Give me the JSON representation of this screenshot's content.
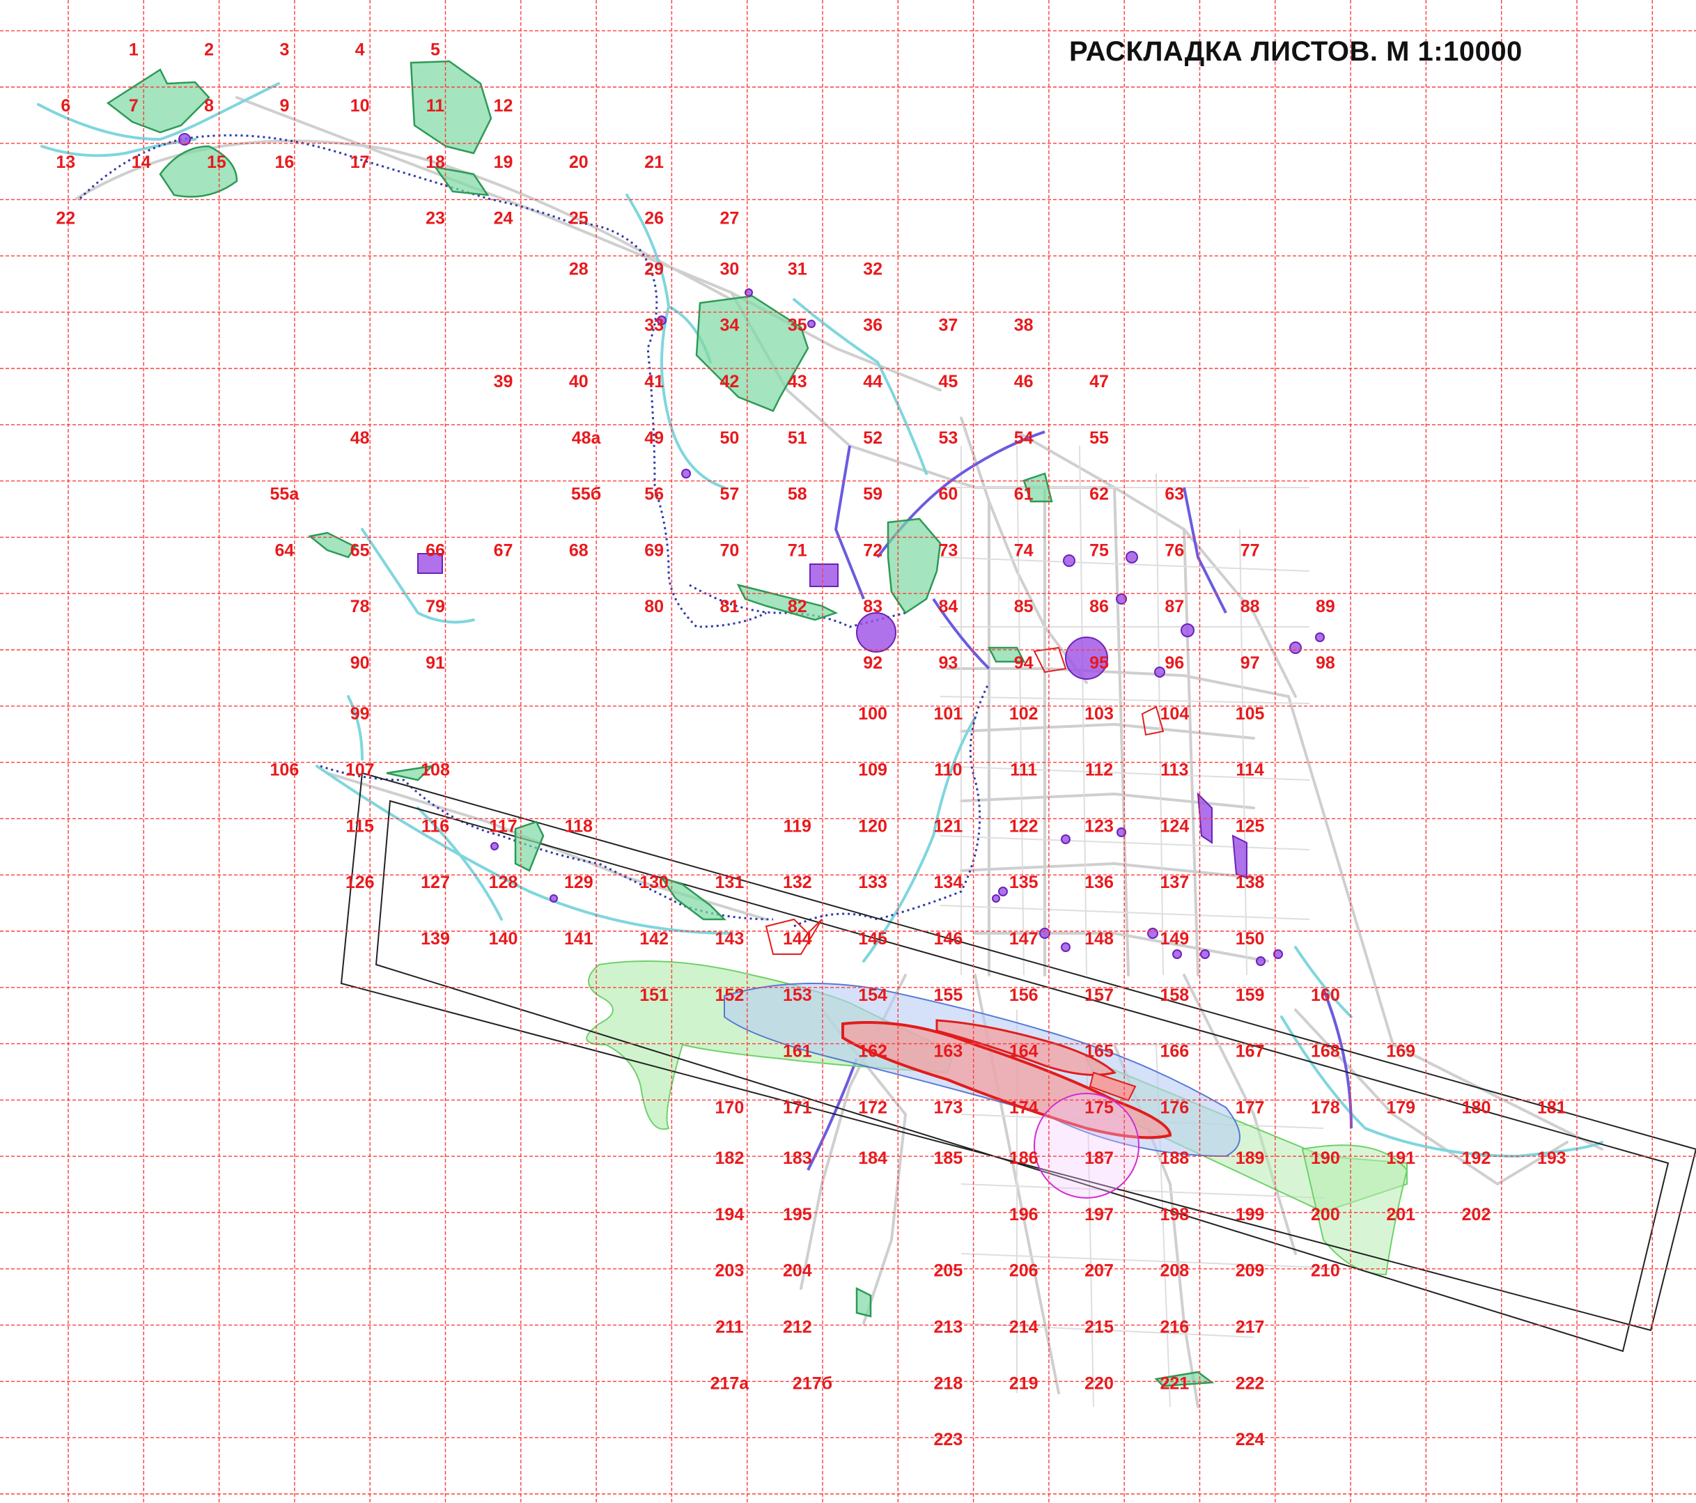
{
  "title": "РАСКЛАДКА ЛИСТОВ. М 1:10000",
  "colors": {
    "grid": "#ff3b3b",
    "labels": "#e8191c",
    "green_zones": "#36b36a",
    "water": "#7fd6de",
    "roads": "#c9c9c9",
    "blue_routes": "#6a5be0",
    "red_zones": "#e11c1c",
    "purple": "#9b4fe6",
    "corridor": "#222222"
  },
  "sheets": [
    {
      "id": "1",
      "c": 1.8,
      "r": 0.9
    },
    {
      "id": "2",
      "c": 2.8,
      "r": 0.9
    },
    {
      "id": "3",
      "c": 3.8,
      "r": 0.9
    },
    {
      "id": "4",
      "c": 4.8,
      "r": 0.9
    },
    {
      "id": "5",
      "c": 5.8,
      "r": 0.9
    },
    {
      "id": "6",
      "c": 0.9,
      "r": 1.9
    },
    {
      "id": "7",
      "c": 1.8,
      "r": 1.9
    },
    {
      "id": "8",
      "c": 2.8,
      "r": 1.9
    },
    {
      "id": "9",
      "c": 3.8,
      "r": 1.9
    },
    {
      "id": "10",
      "c": 4.8,
      "r": 1.9
    },
    {
      "id": "11",
      "c": 5.8,
      "r": 1.9
    },
    {
      "id": "12",
      "c": 6.7,
      "r": 1.9
    },
    {
      "id": "13",
      "c": 0.9,
      "r": 2.9
    },
    {
      "id": "14",
      "c": 1.9,
      "r": 2.9
    },
    {
      "id": "15",
      "c": 2.9,
      "r": 2.9
    },
    {
      "id": "16",
      "c": 3.8,
      "r": 2.9
    },
    {
      "id": "17",
      "c": 4.8,
      "r": 2.9
    },
    {
      "id": "18",
      "c": 5.8,
      "r": 2.9
    },
    {
      "id": "19",
      "c": 6.7,
      "r": 2.9
    },
    {
      "id": "20",
      "c": 7.7,
      "r": 2.9
    },
    {
      "id": "21",
      "c": 8.7,
      "r": 2.9
    },
    {
      "id": "22",
      "c": 0.9,
      "r": 3.9
    },
    {
      "id": "23",
      "c": 5.8,
      "r": 3.9
    },
    {
      "id": "24",
      "c": 6.7,
      "r": 3.9
    },
    {
      "id": "25",
      "c": 7.7,
      "r": 3.9
    },
    {
      "id": "26",
      "c": 8.7,
      "r": 3.9
    },
    {
      "id": "27",
      "c": 9.7,
      "r": 3.9
    },
    {
      "id": "28",
      "c": 7.7,
      "r": 4.8
    },
    {
      "id": "29",
      "c": 8.7,
      "r": 4.8
    },
    {
      "id": "30",
      "c": 9.7,
      "r": 4.8
    },
    {
      "id": "31",
      "c": 10.6,
      "r": 4.8
    },
    {
      "id": "32",
      "c": 11.6,
      "r": 4.8
    },
    {
      "id": "33",
      "c": 8.7,
      "r": 5.8
    },
    {
      "id": "34",
      "c": 9.7,
      "r": 5.8
    },
    {
      "id": "35",
      "c": 10.6,
      "r": 5.8
    },
    {
      "id": "36",
      "c": 11.6,
      "r": 5.8
    },
    {
      "id": "37",
      "c": 12.6,
      "r": 5.8
    },
    {
      "id": "38",
      "c": 13.6,
      "r": 5.8
    },
    {
      "id": "39",
      "c": 6.7,
      "r": 6.8
    },
    {
      "id": "40",
      "c": 7.7,
      "r": 6.8
    },
    {
      "id": "41",
      "c": 8.7,
      "r": 6.8
    },
    {
      "id": "42",
      "c": 9.7,
      "r": 6.8
    },
    {
      "id": "43",
      "c": 10.6,
      "r": 6.8
    },
    {
      "id": "44",
      "c": 11.6,
      "r": 6.8
    },
    {
      "id": "45",
      "c": 12.6,
      "r": 6.8
    },
    {
      "id": "46",
      "c": 13.6,
      "r": 6.8
    },
    {
      "id": "47",
      "c": 14.6,
      "r": 6.8
    },
    {
      "id": "48",
      "c": 4.8,
      "r": 7.8
    },
    {
      "id": "48а",
      "c": 7.8,
      "r": 7.8
    },
    {
      "id": "49",
      "c": 8.7,
      "r": 7.8
    },
    {
      "id": "50",
      "c": 9.7,
      "r": 7.8
    },
    {
      "id": "51",
      "c": 10.6,
      "r": 7.8
    },
    {
      "id": "52",
      "c": 11.6,
      "r": 7.8
    },
    {
      "id": "53",
      "c": 12.6,
      "r": 7.8
    },
    {
      "id": "54",
      "c": 13.6,
      "r": 7.8
    },
    {
      "id": "55",
      "c": 14.6,
      "r": 7.8
    },
    {
      "id": "55а",
      "c": 3.8,
      "r": 8.8
    },
    {
      "id": "55б",
      "c": 7.8,
      "r": 8.8
    },
    {
      "id": "56",
      "c": 8.7,
      "r": 8.8
    },
    {
      "id": "57",
      "c": 9.7,
      "r": 8.8
    },
    {
      "id": "58",
      "c": 10.6,
      "r": 8.8
    },
    {
      "id": "59",
      "c": 11.6,
      "r": 8.8
    },
    {
      "id": "60",
      "c": 12.6,
      "r": 8.8
    },
    {
      "id": "61",
      "c": 13.6,
      "r": 8.8
    },
    {
      "id": "62",
      "c": 14.6,
      "r": 8.8
    },
    {
      "id": "63",
      "c": 15.6,
      "r": 8.8
    },
    {
      "id": "64",
      "c": 3.8,
      "r": 9.8
    },
    {
      "id": "65",
      "c": 4.8,
      "r": 9.8
    },
    {
      "id": "66",
      "c": 5.8,
      "r": 9.8
    },
    {
      "id": "67",
      "c": 6.7,
      "r": 9.8
    },
    {
      "id": "68",
      "c": 7.7,
      "r": 9.8
    },
    {
      "id": "69",
      "c": 8.7,
      "r": 9.8
    },
    {
      "id": "70",
      "c": 9.7,
      "r": 9.8
    },
    {
      "id": "71",
      "c": 10.6,
      "r": 9.8
    },
    {
      "id": "72",
      "c": 11.6,
      "r": 9.8
    },
    {
      "id": "73",
      "c": 12.6,
      "r": 9.8
    },
    {
      "id": "74",
      "c": 13.6,
      "r": 9.8
    },
    {
      "id": "75",
      "c": 14.6,
      "r": 9.8
    },
    {
      "id": "76",
      "c": 15.6,
      "r": 9.8
    },
    {
      "id": "77",
      "c": 16.6,
      "r": 9.8
    },
    {
      "id": "78",
      "c": 4.8,
      "r": 10.8
    },
    {
      "id": "79",
      "c": 5.8,
      "r": 10.8
    },
    {
      "id": "80",
      "c": 8.7,
      "r": 10.8
    },
    {
      "id": "81",
      "c": 9.7,
      "r": 10.8
    },
    {
      "id": "82",
      "c": 10.6,
      "r": 10.8
    },
    {
      "id": "83",
      "c": 11.6,
      "r": 10.8
    },
    {
      "id": "84",
      "c": 12.6,
      "r": 10.8
    },
    {
      "id": "85",
      "c": 13.6,
      "r": 10.8
    },
    {
      "id": "86",
      "c": 14.6,
      "r": 10.8
    },
    {
      "id": "87",
      "c": 15.6,
      "r": 10.8
    },
    {
      "id": "88",
      "c": 16.6,
      "r": 10.8
    },
    {
      "id": "89",
      "c": 17.6,
      "r": 10.8
    },
    {
      "id": "90",
      "c": 4.8,
      "r": 11.8
    },
    {
      "id": "91",
      "c": 5.8,
      "r": 11.8
    },
    {
      "id": "92",
      "c": 11.6,
      "r": 11.8
    },
    {
      "id": "93",
      "c": 12.6,
      "r": 11.8
    },
    {
      "id": "94",
      "c": 13.6,
      "r": 11.8
    },
    {
      "id": "95",
      "c": 14.6,
      "r": 11.8
    },
    {
      "id": "96",
      "c": 15.6,
      "r": 11.8
    },
    {
      "id": "97",
      "c": 16.6,
      "r": 11.8
    },
    {
      "id": "98",
      "c": 17.6,
      "r": 11.8
    },
    {
      "id": "99",
      "c": 4.8,
      "r": 12.7
    },
    {
      "id": "100",
      "c": 11.6,
      "r": 12.7
    },
    {
      "id": "101",
      "c": 12.6,
      "r": 12.7
    },
    {
      "id": "102",
      "c": 13.6,
      "r": 12.7
    },
    {
      "id": "103",
      "c": 14.6,
      "r": 12.7
    },
    {
      "id": "104",
      "c": 15.6,
      "r": 12.7
    },
    {
      "id": "105",
      "c": 16.6,
      "r": 12.7
    },
    {
      "id": "106",
      "c": 3.8,
      "r": 13.7
    },
    {
      "id": "107",
      "c": 4.8,
      "r": 13.7
    },
    {
      "id": "108",
      "c": 5.8,
      "r": 13.7
    },
    {
      "id": "109",
      "c": 11.6,
      "r": 13.7
    },
    {
      "id": "110",
      "c": 12.6,
      "r": 13.7
    },
    {
      "id": "111",
      "c": 13.6,
      "r": 13.7
    },
    {
      "id": "112",
      "c": 14.6,
      "r": 13.7
    },
    {
      "id": "113",
      "c": 15.6,
      "r": 13.7
    },
    {
      "id": "114",
      "c": 16.6,
      "r": 13.7
    },
    {
      "id": "115",
      "c": 4.8,
      "r": 14.7
    },
    {
      "id": "116",
      "c": 5.8,
      "r": 14.7
    },
    {
      "id": "117",
      "c": 6.7,
      "r": 14.7
    },
    {
      "id": "118",
      "c": 7.7,
      "r": 14.7
    },
    {
      "id": "119",
      "c": 10.6,
      "r": 14.7
    },
    {
      "id": "120",
      "c": 11.6,
      "r": 14.7
    },
    {
      "id": "121",
      "c": 12.6,
      "r": 14.7
    },
    {
      "id": "122",
      "c": 13.6,
      "r": 14.7
    },
    {
      "id": "123",
      "c": 14.6,
      "r": 14.7
    },
    {
      "id": "124",
      "c": 15.6,
      "r": 14.7
    },
    {
      "id": "125",
      "c": 16.6,
      "r": 14.7
    },
    {
      "id": "126",
      "c": 4.8,
      "r": 15.7
    },
    {
      "id": "127",
      "c": 5.8,
      "r": 15.7
    },
    {
      "id": "128",
      "c": 6.7,
      "r": 15.7
    },
    {
      "id": "129",
      "c": 7.7,
      "r": 15.7
    },
    {
      "id": "130",
      "c": 8.7,
      "r": 15.7
    },
    {
      "id": "131",
      "c": 9.7,
      "r": 15.7
    },
    {
      "id": "132",
      "c": 10.6,
      "r": 15.7
    },
    {
      "id": "133",
      "c": 11.6,
      "r": 15.7
    },
    {
      "id": "134",
      "c": 12.6,
      "r": 15.7
    },
    {
      "id": "135",
      "c": 13.6,
      "r": 15.7
    },
    {
      "id": "136",
      "c": 14.6,
      "r": 15.7
    },
    {
      "id": "137",
      "c": 15.6,
      "r": 15.7
    },
    {
      "id": "138",
      "c": 16.6,
      "r": 15.7
    },
    {
      "id": "139",
      "c": 5.8,
      "r": 16.7
    },
    {
      "id": "140",
      "c": 6.7,
      "r": 16.7
    },
    {
      "id": "141",
      "c": 7.7,
      "r": 16.7
    },
    {
      "id": "142",
      "c": 8.7,
      "r": 16.7
    },
    {
      "id": "143",
      "c": 9.7,
      "r": 16.7
    },
    {
      "id": "144",
      "c": 10.6,
      "r": 16.7
    },
    {
      "id": "145",
      "c": 11.6,
      "r": 16.7
    },
    {
      "id": "146",
      "c": 12.6,
      "r": 16.7
    },
    {
      "id": "147",
      "c": 13.6,
      "r": 16.7
    },
    {
      "id": "148",
      "c": 14.6,
      "r": 16.7
    },
    {
      "id": "149",
      "c": 15.6,
      "r": 16.7
    },
    {
      "id": "150",
      "c": 16.6,
      "r": 16.7
    },
    {
      "id": "151",
      "c": 8.7,
      "r": 17.7
    },
    {
      "id": "152",
      "c": 9.7,
      "r": 17.7
    },
    {
      "id": "153",
      "c": 10.6,
      "r": 17.7
    },
    {
      "id": "154",
      "c": 11.6,
      "r": 17.7
    },
    {
      "id": "155",
      "c": 12.6,
      "r": 17.7
    },
    {
      "id": "156",
      "c": 13.6,
      "r": 17.7
    },
    {
      "id": "157",
      "c": 14.6,
      "r": 17.7
    },
    {
      "id": "158",
      "c": 15.6,
      "r": 17.7
    },
    {
      "id": "159",
      "c": 16.6,
      "r": 17.7
    },
    {
      "id": "160",
      "c": 17.6,
      "r": 17.7
    },
    {
      "id": "161",
      "c": 10.6,
      "r": 18.7
    },
    {
      "id": "162",
      "c": 11.6,
      "r": 18.7
    },
    {
      "id": "163",
      "c": 12.6,
      "r": 18.7
    },
    {
      "id": "164",
      "c": 13.6,
      "r": 18.7
    },
    {
      "id": "165",
      "c": 14.6,
      "r": 18.7
    },
    {
      "id": "166",
      "c": 15.6,
      "r": 18.7
    },
    {
      "id": "167",
      "c": 16.6,
      "r": 18.7
    },
    {
      "id": "168",
      "c": 17.6,
      "r": 18.7
    },
    {
      "id": "169",
      "c": 18.6,
      "r": 18.7
    },
    {
      "id": "170",
      "c": 9.7,
      "r": 19.7
    },
    {
      "id": "171",
      "c": 10.6,
      "r": 19.7
    },
    {
      "id": "172",
      "c": 11.6,
      "r": 19.7
    },
    {
      "id": "173",
      "c": 12.6,
      "r": 19.7
    },
    {
      "id": "174",
      "c": 13.6,
      "r": 19.7
    },
    {
      "id": "175",
      "c": 14.6,
      "r": 19.7
    },
    {
      "id": "176",
      "c": 15.6,
      "r": 19.7
    },
    {
      "id": "177",
      "c": 16.6,
      "r": 19.7
    },
    {
      "id": "178",
      "c": 17.6,
      "r": 19.7
    },
    {
      "id": "179",
      "c": 18.6,
      "r": 19.7
    },
    {
      "id": "180",
      "c": 19.6,
      "r": 19.7
    },
    {
      "id": "181",
      "c": 20.6,
      "r": 19.7
    },
    {
      "id": "182",
      "c": 9.7,
      "r": 20.6
    },
    {
      "id": "183",
      "c": 10.6,
      "r": 20.6
    },
    {
      "id": "184",
      "c": 11.6,
      "r": 20.6
    },
    {
      "id": "185",
      "c": 12.6,
      "r": 20.6
    },
    {
      "id": "186",
      "c": 13.6,
      "r": 20.6
    },
    {
      "id": "187",
      "c": 14.6,
      "r": 20.6
    },
    {
      "id": "188",
      "c": 15.6,
      "r": 20.6
    },
    {
      "id": "189",
      "c": 16.6,
      "r": 20.6
    },
    {
      "id": "190",
      "c": 17.6,
      "r": 20.6
    },
    {
      "id": "191",
      "c": 18.6,
      "r": 20.6
    },
    {
      "id": "192",
      "c": 19.6,
      "r": 20.6
    },
    {
      "id": "193",
      "c": 20.6,
      "r": 20.6
    },
    {
      "id": "194",
      "c": 9.7,
      "r": 21.6
    },
    {
      "id": "195",
      "c": 10.6,
      "r": 21.6
    },
    {
      "id": "196",
      "c": 13.6,
      "r": 21.6
    },
    {
      "id": "197",
      "c": 14.6,
      "r": 21.6
    },
    {
      "id": "198",
      "c": 15.6,
      "r": 21.6
    },
    {
      "id": "199",
      "c": 16.6,
      "r": 21.6
    },
    {
      "id": "200",
      "c": 17.6,
      "r": 21.6
    },
    {
      "id": "201",
      "c": 18.6,
      "r": 21.6
    },
    {
      "id": "202",
      "c": 19.6,
      "r": 21.6
    },
    {
      "id": "203",
      "c": 9.7,
      "r": 22.6
    },
    {
      "id": "204",
      "c": 10.6,
      "r": 22.6
    },
    {
      "id": "205",
      "c": 12.6,
      "r": 22.6
    },
    {
      "id": "206",
      "c": 13.6,
      "r": 22.6
    },
    {
      "id": "207",
      "c": 14.6,
      "r": 22.6
    },
    {
      "id": "208",
      "c": 15.6,
      "r": 22.6
    },
    {
      "id": "209",
      "c": 16.6,
      "r": 22.6
    },
    {
      "id": "210",
      "c": 17.6,
      "r": 22.6
    },
    {
      "id": "211",
      "c": 9.7,
      "r": 23.6
    },
    {
      "id": "212",
      "c": 10.6,
      "r": 23.6
    },
    {
      "id": "213",
      "c": 12.6,
      "r": 23.6
    },
    {
      "id": "214",
      "c": 13.6,
      "r": 23.6
    },
    {
      "id": "215",
      "c": 14.6,
      "r": 23.6
    },
    {
      "id": "216",
      "c": 15.6,
      "r": 23.6
    },
    {
      "id": "217",
      "c": 16.6,
      "r": 23.6
    },
    {
      "id": "217а",
      "c": 9.7,
      "r": 24.6
    },
    {
      "id": "217б",
      "c": 10.8,
      "r": 24.6
    },
    {
      "id": "218",
      "c": 12.6,
      "r": 24.6
    },
    {
      "id": "219",
      "c": 13.6,
      "r": 24.6
    },
    {
      "id": "220",
      "c": 14.6,
      "r": 24.6
    },
    {
      "id": "221",
      "c": 15.6,
      "r": 24.6
    },
    {
      "id": "222",
      "c": 16.6,
      "r": 24.6
    },
    {
      "id": "223",
      "c": 12.6,
      "r": 25.6
    },
    {
      "id": "224",
      "c": 16.6,
      "r": 25.6
    }
  ]
}
